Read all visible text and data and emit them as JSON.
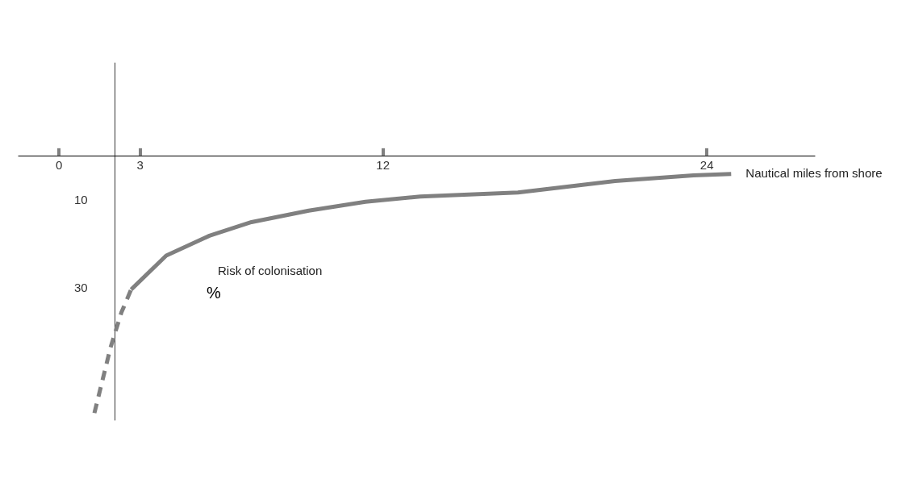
{
  "chart_data": {
    "type": "line",
    "xlabel": "Nautical miles from shore",
    "annotations": [
      "Risk of colonisation",
      "%"
    ],
    "series": [
      {
        "color": "#808080",
        "line_style": "dashed",
        "x": [
          1.31,
          1.91,
          2.31,
          2.67
        ],
        "values": [
          58.4,
          43.5,
          35.6,
          30.4
        ]
      },
      {
        "color": "#808080",
        "line_style": "solid",
        "x": [
          2.67,
          3.97,
          5.57,
          7.13,
          9.25,
          11.35,
          13.38,
          17.0,
          20.6,
          23.5,
          24.9
        ],
        "values": [
          30.4,
          22.7,
          18.2,
          15.1,
          12.5,
          10.5,
          9.3,
          8.4,
          5.8,
          4.5,
          4.2
        ]
      }
    ],
    "xlim": [
      -1.5,
      28
    ],
    "xticks": [
      0,
      3,
      12,
      24
    ],
    "ylim": [
      60,
      -21
    ],
    "yticks": [
      10,
      30
    ],
    "marker": "none",
    "grid": false
  }
}
